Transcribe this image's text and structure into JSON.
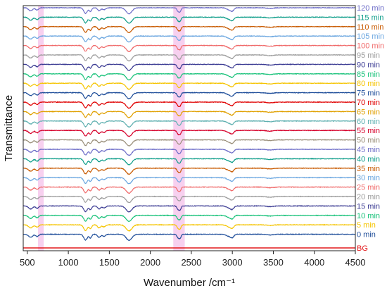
{
  "chart_data": {
    "type": "line",
    "title": "",
    "xlabel": "Wavenumber /cm⁻¹",
    "ylabel": "Transmittance",
    "xlim": [
      450,
      4500
    ],
    "x_ticks": [
      500,
      1000,
      1500,
      2000,
      2500,
      3000,
      3500,
      4000,
      4500
    ],
    "y_ticks_shown": false,
    "highlight_bands": [
      {
        "x_range": [
          630,
          700
        ],
        "color": "#f6c8ec"
      },
      {
        "x_range": [
          2280,
          2420
        ],
        "color": "#f6c8ec"
      }
    ],
    "legend_placement": "right-edge labels next to each trace",
    "stacking": "vertical offset, first series at bottom",
    "series": [
      {
        "name": "BG",
        "color": "#e41a1c",
        "flat": true
      },
      {
        "name": "0 min",
        "color": "#1f4e9a"
      },
      {
        "name": "5 min",
        "color": "#f5c400"
      },
      {
        "name": "10 min",
        "color": "#19c27a"
      },
      {
        "name": "15 min",
        "color": "#3d3d94"
      },
      {
        "name": "20 min",
        "color": "#9c9c9c"
      },
      {
        "name": "25 min",
        "color": "#f06a6a"
      },
      {
        "name": "30 min",
        "color": "#6aa6e0"
      },
      {
        "name": "35 min",
        "color": "#c85a00"
      },
      {
        "name": "40 min",
        "color": "#0f9e8a"
      },
      {
        "name": "45 min",
        "color": "#6d6dc8"
      },
      {
        "name": "50 min",
        "color": "#9a8f7a"
      },
      {
        "name": "55 min",
        "color": "#d6002a"
      },
      {
        "name": "60 min",
        "color": "#5fb0b0"
      },
      {
        "name": "65 min",
        "color": "#e0a000"
      },
      {
        "name": "70 min",
        "color": "#e00000"
      },
      {
        "name": "75 min",
        "color": "#1f4e9a"
      },
      {
        "name": "80 min",
        "color": "#f5c400"
      },
      {
        "name": "85 min",
        "color": "#19c27a"
      },
      {
        "name": "90 min",
        "color": "#3d3d94"
      },
      {
        "name": "95 min",
        "color": "#9c9c9c"
      },
      {
        "name": "100 min",
        "color": "#f06a6a"
      },
      {
        "name": "105 min",
        "color": "#6aa6e0"
      },
      {
        "name": "110 min",
        "color": "#c85a00"
      },
      {
        "name": "115 min",
        "color": "#0f9e8a"
      },
      {
        "name": "120 min",
        "color": "#6d6dc8"
      }
    ],
    "absorption_bands": [
      {
        "x": 540,
        "depth": 0.45,
        "width": 25
      },
      {
        "x": 620,
        "depth": 0.35,
        "width": 18
      },
      {
        "x": 1210,
        "depth": 0.85,
        "width": 22
      },
      {
        "x": 1270,
        "depth": 0.55,
        "width": 15
      },
      {
        "x": 1375,
        "depth": 0.45,
        "width": 18
      },
      {
        "x": 1435,
        "depth": 0.3,
        "width": 20
      },
      {
        "x": 1740,
        "depth": 0.9,
        "width": 35
      },
      {
        "x": 2340,
        "depth": 0.55,
        "width": 15
      },
      {
        "x": 2365,
        "depth": 0.45,
        "width": 12
      },
      {
        "x": 2960,
        "depth": 0.3,
        "width": 30
      },
      {
        "x": 3000,
        "depth": 0.4,
        "width": 20
      },
      {
        "x": 3460,
        "depth": 0.1,
        "width": 40
      }
    ]
  }
}
